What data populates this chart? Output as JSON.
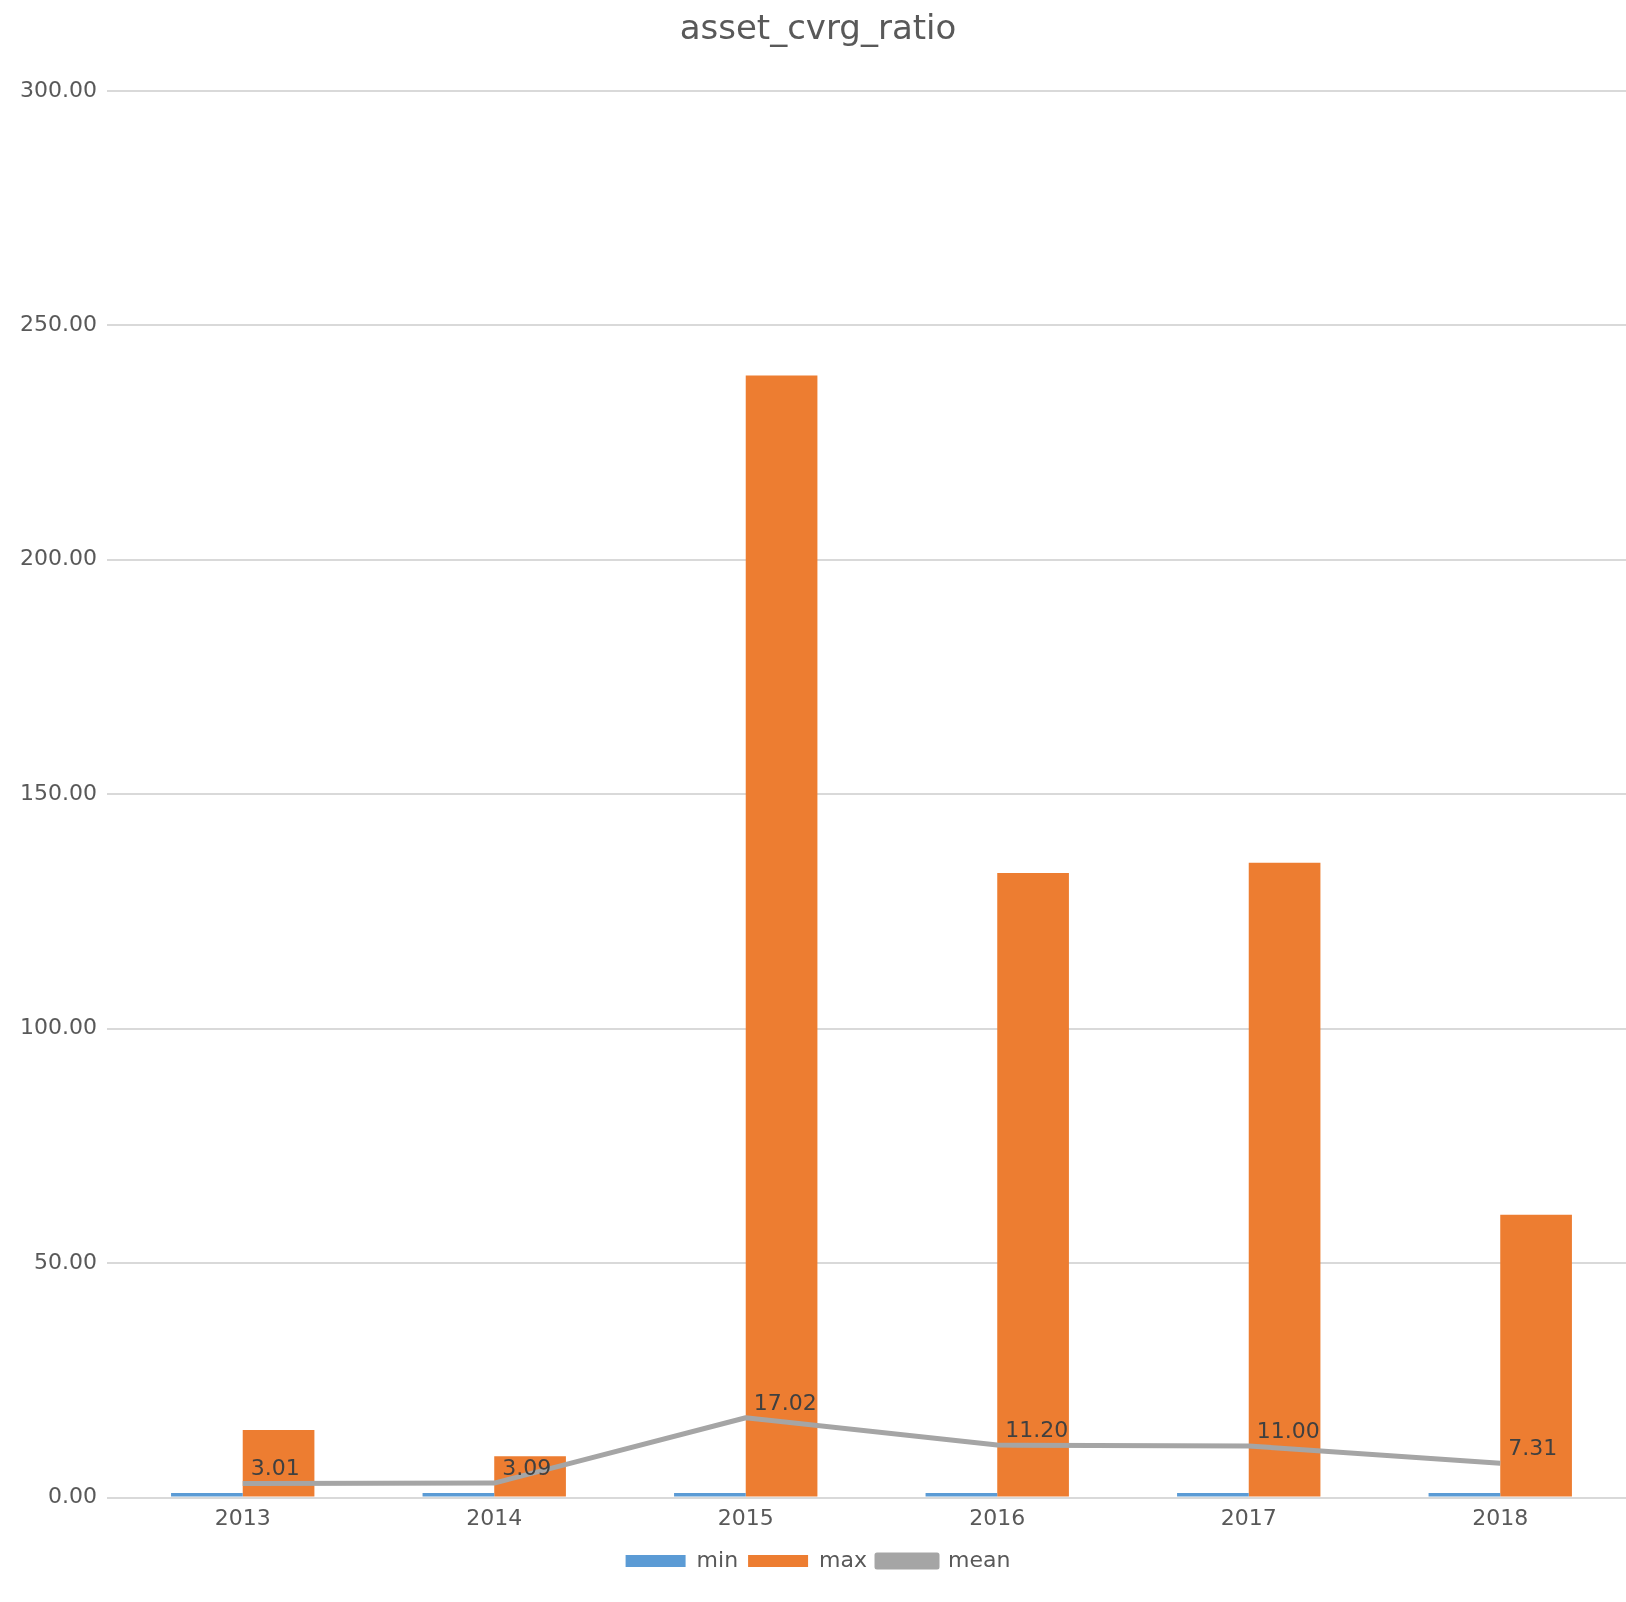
{
  "chart_data": {
    "type": "bar",
    "title": "asset_cvrg_ratio",
    "categories": [
      "2013",
      "2014",
      "2015",
      "2016",
      "2017",
      "2018"
    ],
    "series": [
      {
        "name": "min",
        "color": "#5b9bd5",
        "values": [
          1,
          1,
          1,
          1,
          1,
          1
        ]
      },
      {
        "name": "max",
        "color": "#ed7d31",
        "values": [
          14.4,
          8.8,
          239.3,
          133.2,
          135.4,
          60.3
        ]
      },
      {
        "name": "mean",
        "type": "line",
        "color": "#a5a5a5",
        "values": [
          3.01,
          3.09,
          17.02,
          11.2,
          11.0,
          7.31
        ],
        "value_labels": [
          "3.01",
          "3.09",
          "17.02",
          "11.20",
          "11.00",
          "7.31"
        ]
      }
    ],
    "ylim": [
      0,
      300
    ],
    "yticks": [
      {
        "value": 0,
        "label": "0.00"
      },
      {
        "value": 50,
        "label": "50.00"
      },
      {
        "value": 100,
        "label": "100.00"
      },
      {
        "value": 150,
        "label": "150.00"
      },
      {
        "value": 200,
        "label": "200.00"
      },
      {
        "value": 250,
        "label": "250.00"
      },
      {
        "value": 300,
        "label": "300.00"
      }
    ],
    "grid": "y",
    "legend": "bottom"
  }
}
